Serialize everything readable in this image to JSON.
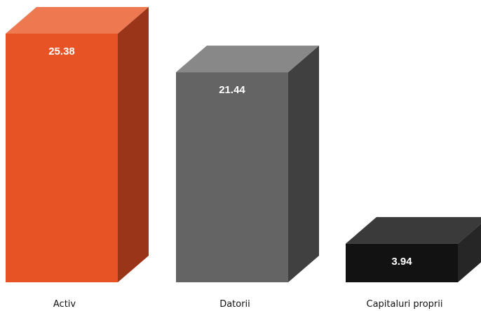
{
  "chart_data": {
    "type": "bar",
    "categories": [
      "Activ",
      "Datorii",
      "Capitaluri proprii"
    ],
    "values": [
      25.38,
      21.44,
      3.94
    ],
    "value_labels": [
      "25.38",
      "21.44",
      "3.94"
    ],
    "colors": [
      {
        "front": "#e85325",
        "top": "#ee7950",
        "side": "#9a3519"
      },
      {
        "front": "#646464",
        "top": "#888888",
        "side": "#404040"
      },
      {
        "front": "#121212",
        "top": "#3a3a3a",
        "side": "#262626"
      }
    ],
    "ylim": [
      0,
      25.38
    ],
    "style": "3d-columns",
    "grid": false,
    "legend": "none"
  }
}
